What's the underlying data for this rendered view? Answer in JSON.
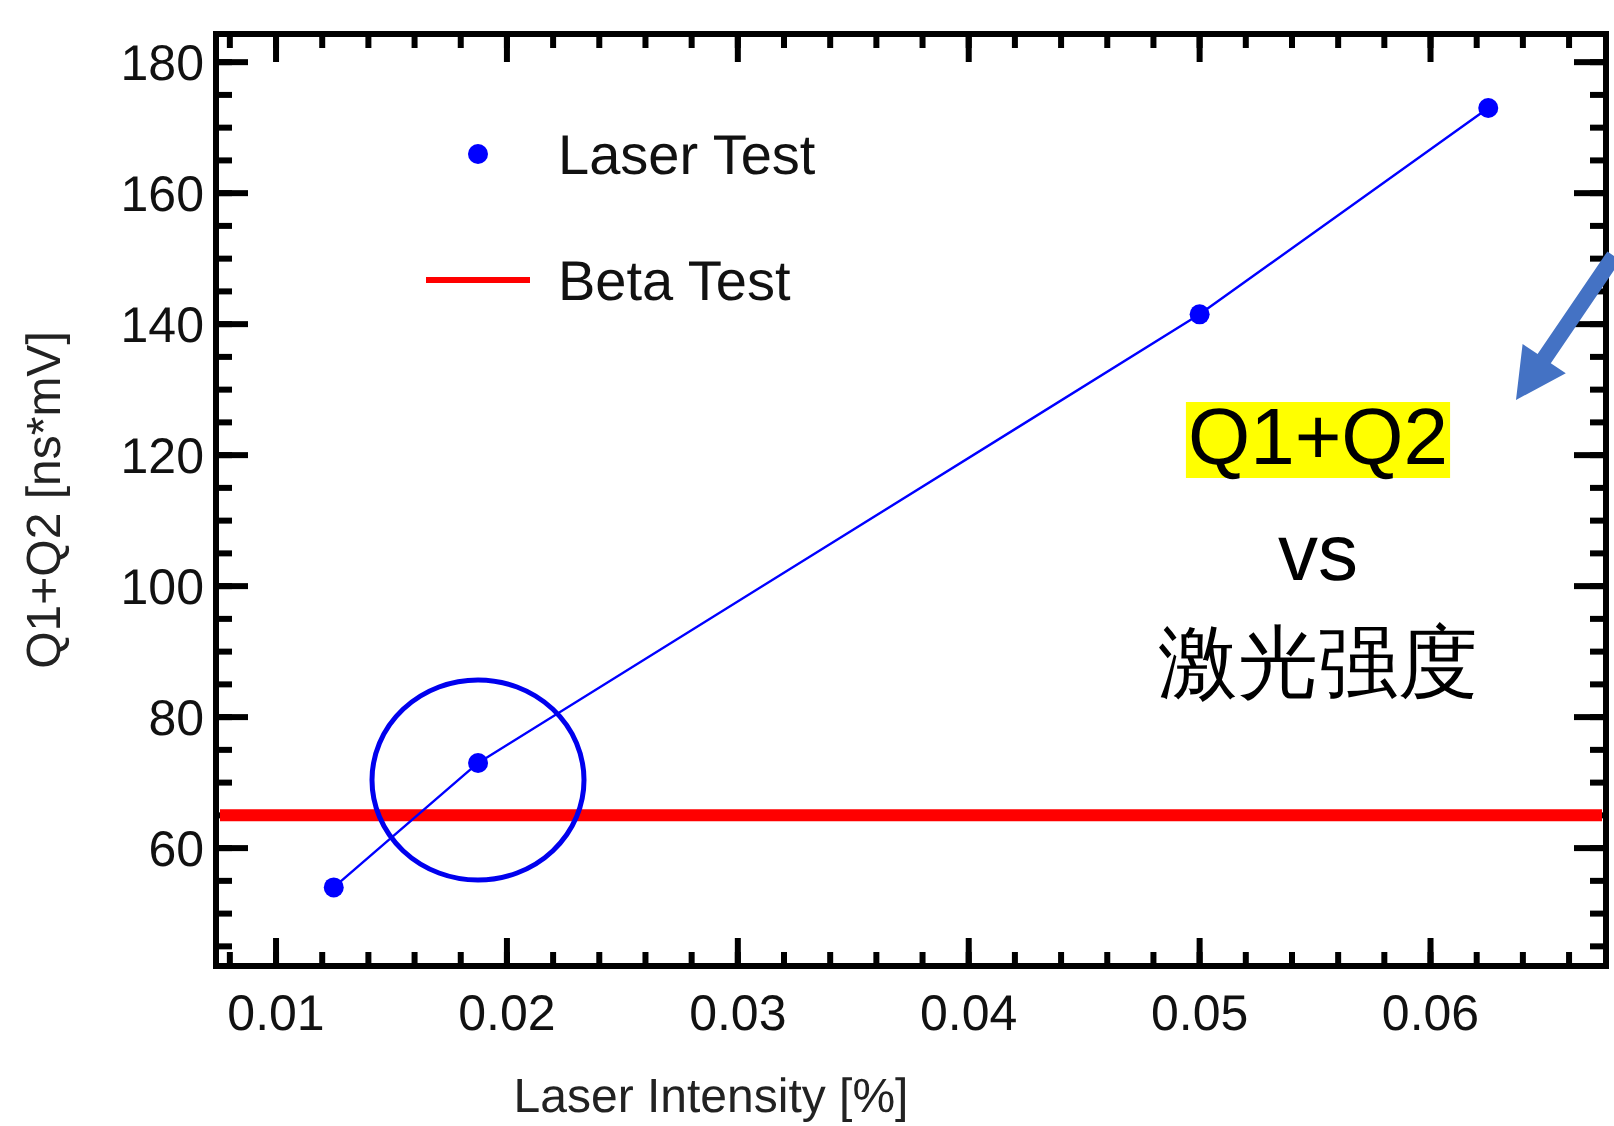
{
  "chart_data": {
    "type": "line",
    "xlabel": "Laser Intensity [%]",
    "ylabel": "Q1+Q2 [ns*mV]",
    "x": [
      0.0125,
      0.01875,
      0.05,
      0.0625
    ],
    "series": [
      {
        "name": "Laser Test",
        "color": "#0000ff",
        "values": [
          54,
          73,
          141.5,
          173
        ]
      }
    ],
    "ref_lines": [
      {
        "axis": "y",
        "value": 65,
        "label": "Beta Test",
        "color": "#ff0000"
      }
    ],
    "annotations": [
      "Q1+Q2",
      "vs",
      "激光强度"
    ],
    "xlim": [
      0.0074,
      0.0676
    ],
    "ylim": [
      42,
      184.3
    ],
    "xticks": [
      0.01,
      0.02,
      0.03,
      0.04,
      0.05,
      0.06
    ],
    "yticks": [
      60,
      80,
      100,
      120,
      140,
      160,
      180
    ],
    "marker": "circle",
    "line_style": "solid",
    "grid": false,
    "legend": "top left"
  }
}
